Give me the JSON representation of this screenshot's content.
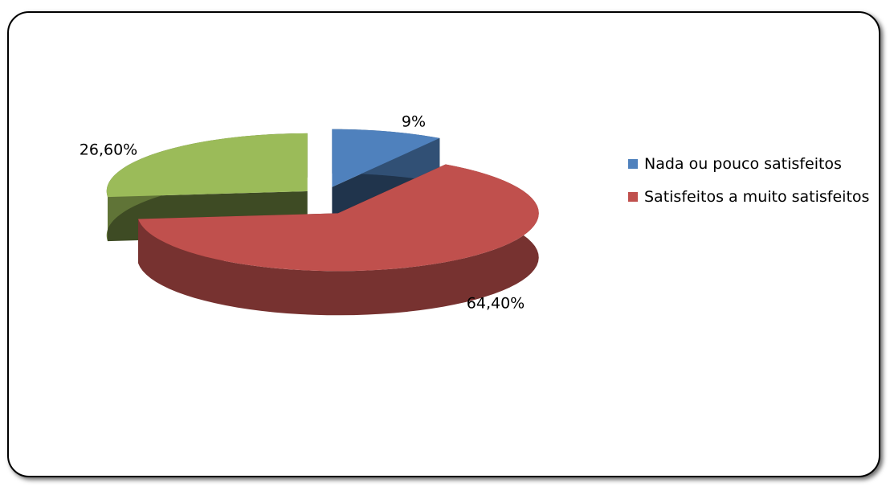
{
  "chart_data": {
    "type": "pie3d",
    "categories": [
      "Nada ou pouco satisfeitos",
      "Satisfeitos a muito satisfeitos",
      null
    ],
    "values": [
      9,
      64.4,
      26.6
    ],
    "value_labels": [
      "9%",
      "64,40%",
      "26,60%"
    ],
    "colors": [
      "#4f81bd",
      "#c0504d",
      "#9bbb59"
    ],
    "legend": "right"
  }
}
